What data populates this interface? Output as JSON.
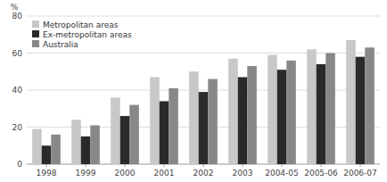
{
  "chart_data": {
    "type": "bar",
    "y_label": "%",
    "categories": [
      "1998",
      "1999",
      "2000",
      "2001",
      "2002",
      "2003",
      "2004-05",
      "2005-06",
      "2006-07"
    ],
    "series": [
      {
        "name": "Metropolitan areas",
        "color": "#c8c8c8",
        "values": [
          19,
          24,
          36,
          47,
          50,
          57,
          59,
          62,
          67
        ]
      },
      {
        "name": "Ex-metropolitan areas",
        "color": "#2a2a2a",
        "values": [
          10,
          15,
          26,
          34,
          39,
          47,
          51,
          54,
          58
        ]
      },
      {
        "name": "Australia",
        "color": "#888888",
        "values": [
          16,
          21,
          32,
          41,
          46,
          53,
          56,
          60,
          63
        ]
      }
    ],
    "ylim": [
      0,
      80
    ],
    "yticks": [
      0,
      20,
      40,
      60,
      80
    ],
    "grid": true,
    "legend": "upper left"
  }
}
